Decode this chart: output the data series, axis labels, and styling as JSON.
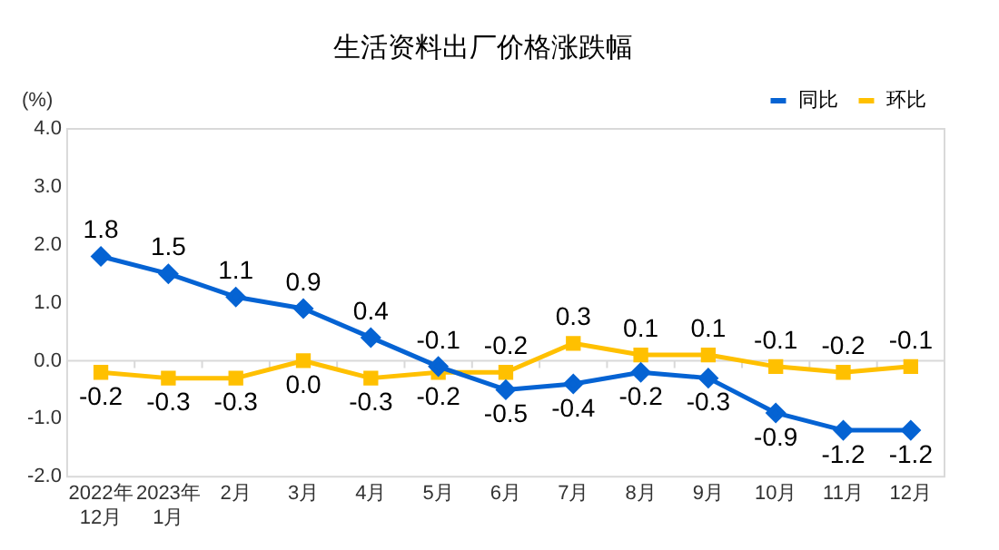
{
  "chart_data": {
    "type": "line",
    "title": "生活资料出厂价格涨跌幅",
    "ylabel": "(%)",
    "categories": [
      "2022年\n12月",
      "2023年\n1月",
      "2月",
      "3月",
      "4月",
      "5月",
      "6月",
      "7月",
      "8月",
      "9月",
      "10月",
      "11月",
      "12月"
    ],
    "series": [
      {
        "name": "同比",
        "color": "#0563d3",
        "marker": "diamond",
        "values": [
          1.8,
          1.5,
          1.1,
          0.9,
          0.4,
          -0.1,
          -0.5,
          -0.4,
          -0.2,
          -0.3,
          -0.9,
          -1.2,
          -1.2
        ],
        "value_labels": [
          "1.8",
          "1.5",
          "1.1",
          "0.9",
          "0.4",
          "-0.1",
          "-0.5",
          "-0.4",
          "-0.2",
          "-0.3",
          "-0.9",
          "-1.2",
          "-1.2"
        ]
      },
      {
        "name": "环比",
        "color": "#ffc000",
        "marker": "square",
        "values": [
          -0.2,
          -0.3,
          -0.3,
          0.0,
          -0.3,
          -0.2,
          -0.2,
          0.3,
          0.1,
          0.1,
          -0.1,
          -0.2,
          -0.1
        ],
        "value_labels": [
          "-0.2",
          "-0.3",
          "-0.3",
          "0.0",
          "-0.3",
          "-0.2",
          "-0.2",
          "0.3",
          "0.1",
          "0.1",
          "-0.1",
          "-0.2",
          "-0.1"
        ]
      }
    ],
    "ylim": [
      -2,
      4
    ],
    "yticks": [
      {
        "value": -2,
        "label": "-2.0"
      },
      {
        "value": -1,
        "label": "-1.0"
      },
      {
        "value": 0,
        "label": "0.0"
      },
      {
        "value": 1,
        "label": "1.0"
      },
      {
        "value": 2,
        "label": "2.0"
      },
      {
        "value": 3,
        "label": "3.0"
      },
      {
        "value": 4,
        "label": "4.0"
      }
    ],
    "ref_lines": [
      {
        "axis": "y",
        "value": 0,
        "color": "#d9d9d9"
      }
    ],
    "grid": false,
    "legend": "top right",
    "line_style": "solid"
  }
}
